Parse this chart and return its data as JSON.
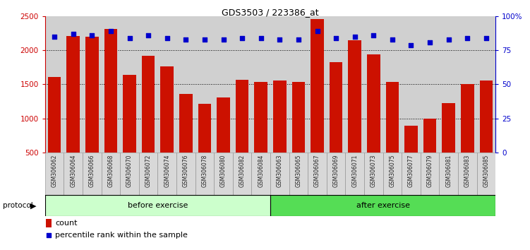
{
  "title": "GDS3503 / 223386_at",
  "samples": [
    "GSM306062",
    "GSM306064",
    "GSM306066",
    "GSM306068",
    "GSM306070",
    "GSM306072",
    "GSM306074",
    "GSM306076",
    "GSM306078",
    "GSM306080",
    "GSM306082",
    "GSM306084",
    "GSM306063",
    "GSM306065",
    "GSM306067",
    "GSM306069",
    "GSM306071",
    "GSM306073",
    "GSM306075",
    "GSM306077",
    "GSM306079",
    "GSM306081",
    "GSM306083",
    "GSM306085"
  ],
  "counts": [
    1610,
    2210,
    2200,
    2310,
    1640,
    1920,
    1760,
    1355,
    1210,
    1310,
    1570,
    1540,
    1560,
    1540,
    2460,
    1830,
    2150,
    1940,
    1540,
    890,
    1000,
    1220,
    1500,
    1560
  ],
  "percentiles": [
    85,
    87,
    86,
    89,
    84,
    86,
    84,
    83,
    83,
    83,
    84,
    84,
    83,
    83,
    89,
    84,
    85,
    86,
    83,
    79,
    81,
    83,
    84,
    84
  ],
  "before_exercise_count": 12,
  "after_exercise_count": 12,
  "bar_color": "#cc1100",
  "dot_color": "#0000cc",
  "before_bg": "#ccffcc",
  "after_bg": "#55dd55",
  "left_axis_color": "#cc0000",
  "right_axis_color": "#0000cc",
  "ylim_left": [
    500,
    2500
  ],
  "ylim_right": [
    0,
    100
  ],
  "yticks_left": [
    500,
    1000,
    1500,
    2000,
    2500
  ],
  "yticks_right": [
    0,
    25,
    50,
    75,
    100
  ],
  "ytick_right_labels": [
    "0",
    "25",
    "50",
    "75",
    "100%"
  ],
  "grid_values": [
    1000,
    1500,
    2000
  ],
  "legend_count_label": "count",
  "legend_pct_label": "percentile rank within the sample",
  "protocol_label": "protocol"
}
